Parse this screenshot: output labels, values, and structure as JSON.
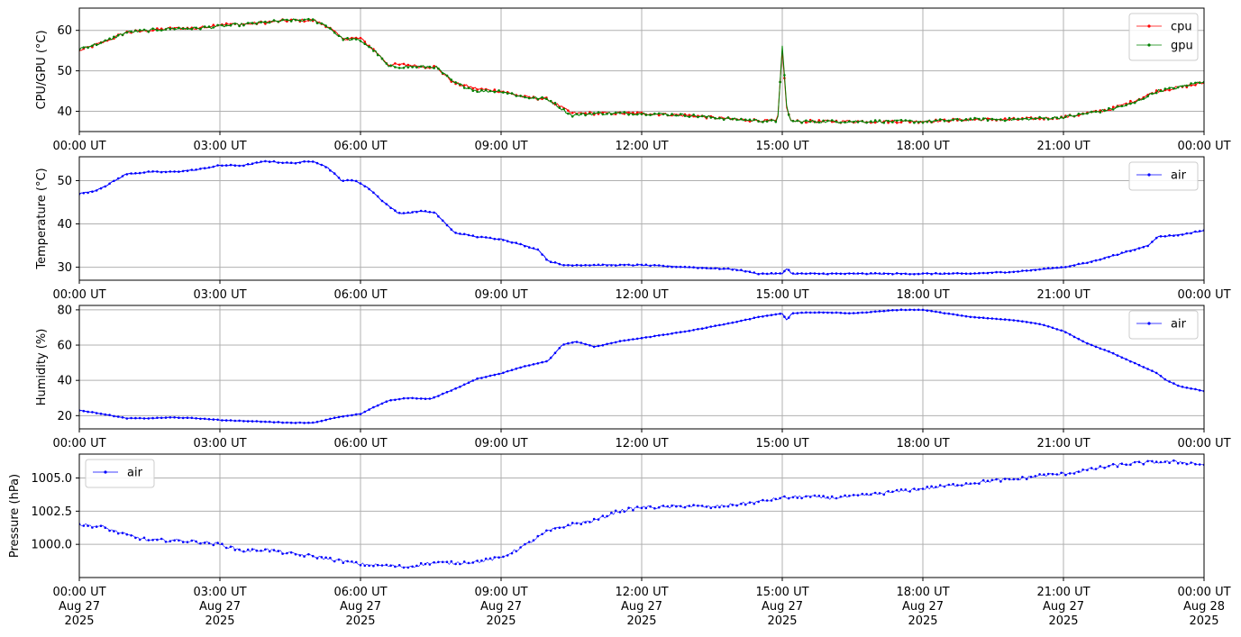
{
  "chart_data": [
    {
      "type": "line",
      "ylabel": "CPU/GPU (°C)",
      "ylim": [
        35,
        65.5
      ],
      "yticks": [
        40,
        50,
        60
      ],
      "ytick_labels": [
        "40",
        "50",
        "60"
      ],
      "x_range_hours": [
        0,
        24
      ],
      "xtick_labels": [
        [
          "00:00 UT"
        ],
        [
          "03:00 UT"
        ],
        [
          "06:00 UT"
        ],
        [
          "09:00 UT"
        ],
        [
          "12:00 UT"
        ],
        [
          "15:00 UT"
        ],
        [
          "18:00 UT"
        ],
        [
          "21:00 UT"
        ],
        [
          "00:00 UT"
        ]
      ],
      "grid": true,
      "legend": "top-right",
      "series": [
        {
          "name": "cpu",
          "color": "#ff0000",
          "x_hours": [
            0,
            0.5,
            1,
            1.5,
            2,
            2.5,
            3,
            3.5,
            4,
            4.5,
            5,
            5.3,
            5.6,
            6,
            6.3,
            6.6,
            7,
            7.3,
            7.6,
            8,
            8.5,
            9,
            9.5,
            10,
            10.5,
            11,
            11.5,
            12,
            13,
            14,
            14.9,
            15.0,
            15.1,
            15.2,
            16,
            17,
            18,
            19,
            20,
            21,
            21.5,
            22,
            22.5,
            23,
            23.5,
            24
          ],
          "values": [
            55,
            57,
            59.5,
            60,
            60.5,
            60.5,
            61.5,
            61.5,
            62,
            62.5,
            62.5,
            61,
            58,
            58,
            55,
            51.5,
            51.5,
            51,
            51,
            47,
            45.5,
            45,
            43.5,
            43,
            39.5,
            39.5,
            39.5,
            39.5,
            39,
            38,
            37.5,
            55,
            40,
            37.5,
            37.5,
            37.5,
            37.5,
            38,
            38,
            38.5,
            39.5,
            40.5,
            42.5,
            45,
            46,
            47
          ]
        },
        {
          "name": "gpu",
          "color": "#008000",
          "x_hours": [
            0,
            0.5,
            1,
            1.5,
            2,
            2.5,
            3,
            3.5,
            4,
            4.5,
            5,
            5.3,
            5.6,
            6,
            6.3,
            6.6,
            7,
            7.3,
            7.6,
            8,
            8.5,
            9,
            9.5,
            10,
            10.5,
            11,
            11.5,
            12,
            13,
            14,
            14.9,
            15.0,
            15.1,
            15.2,
            16,
            17,
            18,
            19,
            20,
            21,
            21.5,
            22,
            22.5,
            23,
            23.5,
            24
          ],
          "values": [
            55.5,
            57,
            59.5,
            60,
            60.5,
            60.5,
            61,
            61.5,
            62,
            62.5,
            62.5,
            61,
            58,
            57.5,
            55,
            51,
            51,
            51,
            51,
            47,
            45,
            45,
            43.5,
            43,
            39,
            39.5,
            39.5,
            39.5,
            39,
            38,
            37.5,
            56,
            40,
            37.5,
            37.5,
            37.5,
            37.5,
            38,
            38,
            38.5,
            39.5,
            40.5,
            42,
            45,
            46,
            47.5
          ]
        }
      ]
    },
    {
      "type": "line",
      "ylabel": "Temperature (°C)",
      "ylim": [
        27,
        55.5
      ],
      "yticks": [
        30,
        40,
        50
      ],
      "ytick_labels": [
        "30",
        "40",
        "50"
      ],
      "x_range_hours": [
        0,
        24
      ],
      "xtick_labels": [
        [
          "00:00 UT"
        ],
        [
          "03:00 UT"
        ],
        [
          "06:00 UT"
        ],
        [
          "09:00 UT"
        ],
        [
          "12:00 UT"
        ],
        [
          "15:00 UT"
        ],
        [
          "18:00 UT"
        ],
        [
          "21:00 UT"
        ],
        [
          "00:00 UT"
        ]
      ],
      "grid": true,
      "legend": "top-right",
      "series": [
        {
          "name": "air",
          "color": "#0000ff",
          "x_hours": [
            0,
            0.3,
            0.6,
            1,
            1.5,
            2,
            2.5,
            3,
            3.5,
            4,
            4.5,
            5,
            5.3,
            5.6,
            5.9,
            6.2,
            6.5,
            6.8,
            7,
            7.3,
            7.6,
            8,
            8.5,
            9,
            9.5,
            9.8,
            10,
            10.3,
            10.6,
            11,
            12,
            13,
            14,
            14.5,
            15,
            15.1,
            15.2,
            15.5,
            16,
            17,
            18,
            19,
            20,
            21,
            21.5,
            22,
            22.5,
            22.8,
            23,
            23.5,
            24
          ],
          "values": [
            47,
            47.5,
            49,
            51.5,
            52,
            52,
            52.5,
            53.5,
            53.5,
            54.5,
            54,
            54.5,
            53,
            50,
            50,
            48,
            45,
            42.5,
            42.5,
            43,
            42.5,
            38,
            37,
            36.5,
            35,
            34,
            31.5,
            30.5,
            30.5,
            30.5,
            30.5,
            30,
            29.5,
            28.5,
            28.5,
            29.8,
            28.5,
            28.5,
            28.5,
            28.5,
            28.5,
            28.5,
            29,
            30,
            31,
            32.5,
            34,
            35,
            37,
            37.5,
            38.5
          ]
        }
      ]
    },
    {
      "type": "line",
      "ylabel": "Humidity (%)",
      "ylim": [
        12.5,
        82.5
      ],
      "yticks": [
        20,
        40,
        60,
        80
      ],
      "ytick_labels": [
        "20",
        "40",
        "60",
        "80"
      ],
      "x_range_hours": [
        0,
        24
      ],
      "xtick_labels": [
        [
          "00:00 UT"
        ],
        [
          "03:00 UT"
        ],
        [
          "06:00 UT"
        ],
        [
          "09:00 UT"
        ],
        [
          "12:00 UT"
        ],
        [
          "15:00 UT"
        ],
        [
          "18:00 UT"
        ],
        [
          "21:00 UT"
        ],
        [
          "00:00 UT"
        ]
      ],
      "grid": true,
      "legend": "top-right",
      "series": [
        {
          "name": "air",
          "color": "#0000ff",
          "x_hours": [
            0,
            0.5,
            1,
            1.5,
            2,
            2.5,
            3,
            3.5,
            4,
            4.5,
            5,
            5.5,
            6,
            6.3,
            6.6,
            7,
            7.5,
            8,
            8.5,
            9,
            9.5,
            10,
            10.3,
            10.6,
            11,
            11.5,
            12,
            13,
            14,
            14.5,
            15,
            15.1,
            15.2,
            15.5,
            16,
            16.5,
            17,
            17.5,
            18,
            18.5,
            19,
            19.5,
            20,
            20.5,
            21,
            21.5,
            22,
            22.5,
            23,
            23.2,
            23.5,
            24
          ],
          "values": [
            23,
            21,
            18.5,
            18.5,
            19,
            18.5,
            17.5,
            17,
            16.5,
            16,
            16,
            19,
            21,
            25,
            28.5,
            30,
            29.5,
            35,
            41,
            44,
            48,
            51,
            60,
            62,
            59,
            62,
            64,
            68,
            73,
            76,
            78,
            74,
            78,
            78.5,
            78.5,
            78,
            79,
            80,
            80,
            78,
            76,
            75,
            74,
            72,
            68,
            61,
            56,
            50,
            44,
            40,
            36.5,
            34
          ]
        }
      ]
    },
    {
      "type": "scatter",
      "ylabel": "Pressure (hPa)",
      "ylim": [
        997.5,
        1006.8
      ],
      "yticks": [
        1000.0,
        1002.5,
        1005.0
      ],
      "ytick_labels": [
        "1000.0",
        "1002.5",
        "1005.0"
      ],
      "x_range_hours": [
        0,
        24
      ],
      "xtick_labels": [
        [
          "00:00 UT",
          "Aug 27",
          "2025"
        ],
        [
          "03:00 UT",
          "Aug 27",
          "2025"
        ],
        [
          "06:00 UT",
          "Aug 27",
          "2025"
        ],
        [
          "09:00 UT",
          "Aug 27",
          "2025"
        ],
        [
          "12:00 UT",
          "Aug 27",
          "2025"
        ],
        [
          "15:00 UT",
          "Aug 27",
          "2025"
        ],
        [
          "18:00 UT",
          "Aug 27",
          "2025"
        ],
        [
          "21:00 UT",
          "Aug 27",
          "2025"
        ],
        [
          "00:00 UT",
          "Aug 28",
          "2025"
        ]
      ],
      "grid": true,
      "legend": "top-left",
      "series": [
        {
          "name": "air",
          "color": "#0000ff",
          "x_hours": [
            0,
            0.5,
            1,
            1.5,
            2,
            2.5,
            3,
            3.5,
            4,
            4.5,
            5,
            5.5,
            6,
            6.5,
            7,
            7.5,
            8,
            8.5,
            9,
            9.5,
            10,
            10.5,
            11,
            11.5,
            12,
            12.5,
            13,
            13.5,
            14,
            14.5,
            15,
            15.5,
            16,
            16.5,
            17,
            17.5,
            18,
            18.5,
            19,
            19.5,
            20,
            20.5,
            21,
            21.5,
            22,
            22.5,
            23,
            23.5,
            24
          ],
          "values": [
            1001.5,
            1001.3,
            1000.7,
            1000.3,
            1000.3,
            1000.2,
            1000.0,
            999.5,
            999.6,
            999.3,
            999.1,
            998.8,
            998.5,
            998.4,
            998.3,
            998.6,
            998.6,
            998.7,
            999.0,
            999.9,
            1001.0,
            1001.5,
            1001.8,
            1002.5,
            1002.8,
            1002.8,
            1002.9,
            1002.8,
            1003.0,
            1003.2,
            1003.5,
            1003.6,
            1003.5,
            1003.6,
            1003.8,
            1004.0,
            1004.2,
            1004.4,
            1004.6,
            1004.8,
            1004.9,
            1005.2,
            1005.3,
            1005.6,
            1005.9,
            1006.1,
            1006.2,
            1006.2,
            1006.0
          ]
        }
      ]
    }
  ]
}
